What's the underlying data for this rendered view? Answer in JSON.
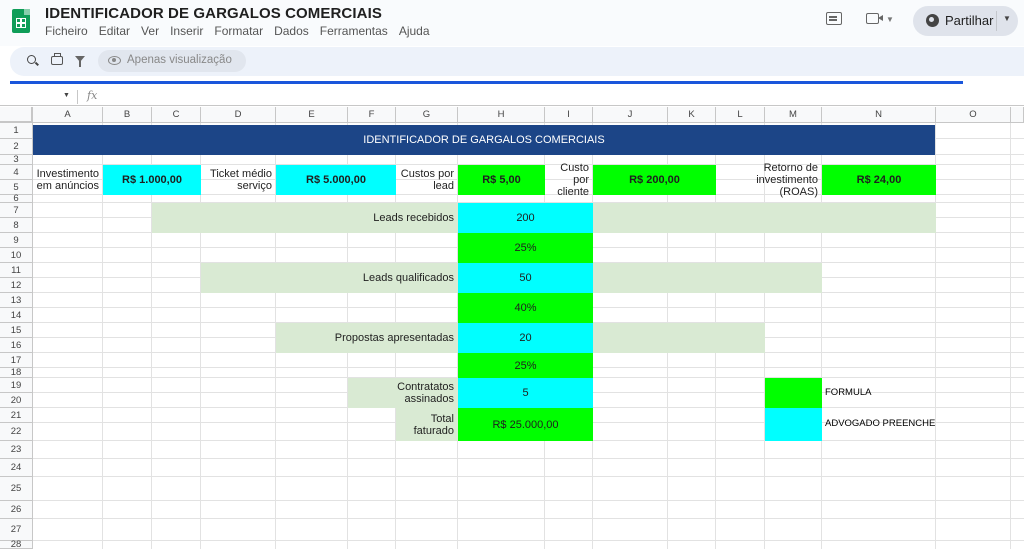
{
  "app": {
    "doc_title": "IDENTIFICADOR DE GARGALOS COMERCIAIS",
    "menu": [
      "Ficheiro",
      "Editar",
      "Ver",
      "Inserir",
      "Formatar",
      "Dados",
      "Ferramentas",
      "Ajuda"
    ],
    "share_label": "Partilhar",
    "view_mode_label": "Apenas visualização",
    "fx_label": "fx"
  },
  "grid": {
    "columns": [
      "A",
      "B",
      "C",
      "D",
      "E",
      "F",
      "G",
      "H",
      "I",
      "J",
      "K",
      "L",
      "M",
      "N",
      "O"
    ],
    "rows": [
      "1",
      "2",
      "3",
      "4",
      "5",
      "6",
      "7",
      "8",
      "9",
      "10",
      "11",
      "12",
      "13",
      "14",
      "15",
      "16",
      "17",
      "18",
      "19",
      "20",
      "21",
      "22",
      "23",
      "24",
      "25",
      "26",
      "27",
      "28"
    ]
  },
  "sheet": {
    "title": "IDENTIFICADOR DE GARGALOS COMERCIAIS",
    "inputs": {
      "investimento_label": "Investimento em anúncios",
      "investimento_value": "R$ 1.000,00",
      "ticket_label": "Ticket médio serviço",
      "ticket_value": "R$ 5.000,00",
      "custo_lead_label": "Custos por lead",
      "custo_lead_value": "R$ 5,00",
      "custo_cliente_label": "Custo por cliente",
      "custo_cliente_value": "R$ 200,00",
      "roas_label": "Retorno de investimento (ROAS)",
      "roas_value": "R$ 24,00"
    },
    "funnel": {
      "leads_recebidos_label": "Leads recebidos",
      "leads_recebidos_value": "200",
      "rate_1": "25%",
      "leads_qualificados_label": "Leads qualificados",
      "leads_qualificados_value": "50",
      "rate_2": "40%",
      "propostas_label": "Propostas apresentadas",
      "propostas_value": "20",
      "rate_3": "25%",
      "contratos_label": "Contratatos assinados",
      "contratos_value": "5",
      "total_label": "Total faturado",
      "total_value": "R$ 25.000,00"
    },
    "legend": {
      "formula_label": "FORMULA",
      "advogado_label": "ADVOGADO PREENCHE",
      "formula_color": "#00ff00",
      "advogado_color": "#00ffff"
    }
  },
  "colors": {
    "formula_green": "#00ff00",
    "input_cyan": "#00ffff",
    "funnel_light_green": "#d9ead3",
    "title_blue": "#1c4587"
  }
}
